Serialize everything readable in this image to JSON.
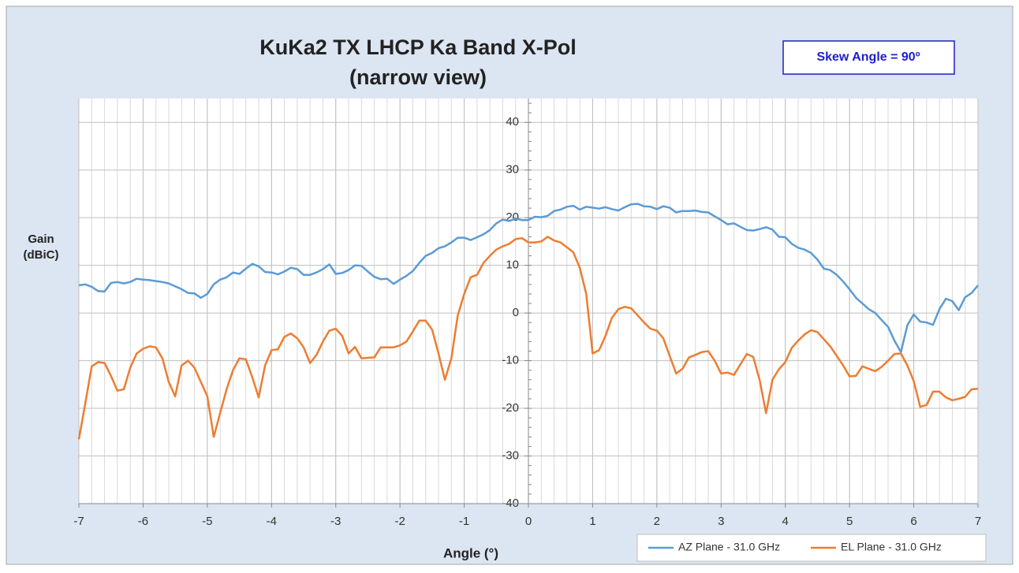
{
  "chart_data": {
    "type": "line",
    "title": "KuKa2 TX LHCP Ka Band X-Pol",
    "subtitle": "(narrow view)",
    "annotation": "Skew Angle = 90º",
    "y_label": [
      "Gain",
      "(dBiC)"
    ],
    "x_label": "Angle (°)",
    "xlim": [
      -7,
      7
    ],
    "xticks": [
      -7,
      -6,
      -5,
      -4,
      -3,
      -2,
      -1,
      0,
      1,
      2,
      3,
      4,
      5,
      6,
      7
    ],
    "ylim": [
      -40,
      45
    ],
    "yticks": [
      -40,
      -30,
      -20,
      -10,
      0,
      10,
      20,
      30,
      40
    ],
    "grid": true,
    "legend": "bottom-right",
    "x": [
      -7,
      -6.9,
      -6.8,
      -6.7,
      -6.6,
      -6.5,
      -6.4,
      -6.3,
      -6.2,
      -6.1,
      -6,
      -5.9,
      -5.8,
      -5.7,
      -5.6,
      -5.5,
      -5.4,
      -5.3,
      -5.2,
      -5.1,
      -5,
      -4.9,
      -4.8,
      -4.7,
      -4.6,
      -4.5,
      -4.4,
      -4.3,
      -4.2,
      -4.1,
      -4,
      -3.9,
      -3.8,
      -3.7,
      -3.6,
      -3.5,
      -3.4,
      -3.3,
      -3.2,
      -3.1,
      -3,
      -2.9,
      -2.8,
      -2.7,
      -2.6,
      -2.5,
      -2.4,
      -2.3,
      -2.2,
      -2.1,
      -2,
      -1.9,
      -1.8,
      -1.7,
      -1.6,
      -1.5,
      -1.4,
      -1.3,
      -1.2,
      -1.1,
      -1,
      -0.9,
      -0.8,
      -0.7,
      -0.6,
      -0.5,
      -0.4,
      -0.3,
      -0.2,
      -0.1,
      0,
      0.1,
      0.2,
      0.3,
      0.4,
      0.5,
      0.6,
      0.7,
      0.8,
      0.9,
      1,
      1.1,
      1.2,
      1.3,
      1.4,
      1.5,
      1.6,
      1.7,
      1.8,
      1.9,
      2,
      2.1,
      2.2,
      2.3,
      2.4,
      2.5,
      2.6,
      2.7,
      2.8,
      2.9,
      3,
      3.1,
      3.2,
      3.3,
      3.4,
      3.5,
      3.6,
      3.7,
      3.8,
      3.9,
      4,
      4.1,
      4.2,
      4.3,
      4.4,
      4.5,
      4.6,
      4.7,
      4.8,
      4.9,
      5,
      5.1,
      5.2,
      5.3,
      5.4,
      5.5,
      5.6,
      5.7,
      5.8,
      5.9,
      6,
      6.1,
      6.2,
      6.3,
      6.4,
      6.5,
      6.6,
      6.7,
      6.8,
      6.9,
      7
    ],
    "series": [
      {
        "name": "AZ Plane - 31.0 GHz",
        "color": "#5b9bd5",
        "values": [
          5.8,
          6.0,
          5.5,
          4.6,
          4.5,
          6.3,
          6.5,
          6.2,
          6.5,
          7.2,
          7.0,
          6.9,
          6.7,
          6.5,
          6.2,
          5.6,
          5.0,
          4.2,
          4.1,
          3.2,
          4.0,
          6.0,
          7.0,
          7.5,
          8.5,
          8.2,
          9.3,
          10.3,
          9.8,
          8.6,
          8.5,
          8.1,
          8.7,
          9.5,
          9.2,
          8.0,
          8.0,
          8.5,
          9.2,
          10.2,
          8.2,
          8.4,
          9.0,
          10.0,
          9.9,
          8.7,
          7.6,
          7.1,
          7.2,
          6.1,
          7.0,
          7.8,
          8.8,
          10.5,
          12.0,
          12.6,
          13.6,
          14.0,
          14.8,
          15.8,
          15.8,
          15.3,
          15.9,
          16.5,
          17.4,
          18.8,
          19.6,
          19.3,
          19.8,
          19.5,
          19.5,
          20.2,
          20.1,
          20.4,
          21.4,
          21.7,
          22.3,
          22.5,
          21.7,
          22.3,
          22.1,
          21.9,
          22.2,
          21.8,
          21.5,
          22.2,
          22.8,
          22.9,
          22.4,
          22.3,
          21.8,
          22.4,
          22.1,
          21.1,
          21.4,
          21.4,
          21.5,
          21.2,
          21.1,
          20.3,
          19.5,
          18.6,
          18.8,
          18.1,
          17.4,
          17.3,
          17.6,
          18.0,
          17.5,
          16.0,
          15.9,
          14.5,
          13.7,
          13.3,
          12.6,
          11.2,
          9.3,
          9.0,
          8.0,
          6.6,
          5.0,
          3.2,
          2.0,
          0.8,
          0.0,
          -1.5,
          -2.9,
          -5.8,
          -8.2,
          -2.6,
          -0.3,
          -1.8,
          -2.0,
          -2.5,
          0.8,
          3.0,
          2.5,
          0.6,
          3.3,
          4.2,
          5.8
        ]
      },
      {
        "name": "EL Plane - 31.0 GHz",
        "color": "#ed7d31",
        "values": [
          -26.5,
          -19,
          -11.2,
          -10.3,
          -10.5,
          -13.2,
          -16.3,
          -16.0,
          -11.5,
          -8.5,
          -7.5,
          -7.0,
          -7.2,
          -9.5,
          -14.5,
          -17.5,
          -11,
          -10,
          -11.5,
          -14.5,
          -17.5,
          -26,
          -21,
          -16,
          -12,
          -9.5,
          -9.7,
          -13.5,
          -17.7,
          -11,
          -7.8,
          -7.6,
          -5.0,
          -4.3,
          -5.3,
          -7.2,
          -10.5,
          -8.8,
          -6.0,
          -3.7,
          -3.3,
          -4.8,
          -8.5,
          -7.1,
          -9.5,
          -9.4,
          -9.3,
          -7.2,
          -7.2,
          -7.2,
          -6.8,
          -6.0,
          -3.9,
          -1.6,
          -1.6,
          -3.5,
          -8.5,
          -14,
          -9.5,
          -0.5,
          4.0,
          7.5,
          8.0,
          10.5,
          12.0,
          13.3,
          14.0,
          14.5,
          15.5,
          15.7,
          14.8,
          14.8,
          15.0,
          16.0,
          15.2,
          14.8,
          13.8,
          12.7,
          9.5,
          4.0,
          -8.5,
          -7.8,
          -4.8,
          -1.0,
          0.8,
          1.3,
          1.0,
          -0.5,
          -2.0,
          -3.3,
          -3.7,
          -5.3,
          -9.0,
          -12.7,
          -11.7,
          -9.3,
          -8.8,
          -8.2,
          -8.0,
          -10.0,
          -12.7,
          -12.5,
          -13.0,
          -10.8,
          -8.6,
          -9.2,
          -14,
          -21.0,
          -14.0,
          -11.8,
          -10.3,
          -7.3,
          -5.8,
          -4.5,
          -3.6,
          -4.0,
          -5.5,
          -7.0,
          -9.0,
          -11,
          -13.3,
          -13.2,
          -11.2,
          -11.7,
          -12.2,
          -11.3,
          -10.0,
          -8.6,
          -8.5,
          -11,
          -14.3,
          -19.7,
          -19.3,
          -16.5,
          -16.5,
          -17.7,
          -18.3,
          -18.0,
          -17.6,
          -16.0,
          -15.9
        ]
      }
    ]
  }
}
